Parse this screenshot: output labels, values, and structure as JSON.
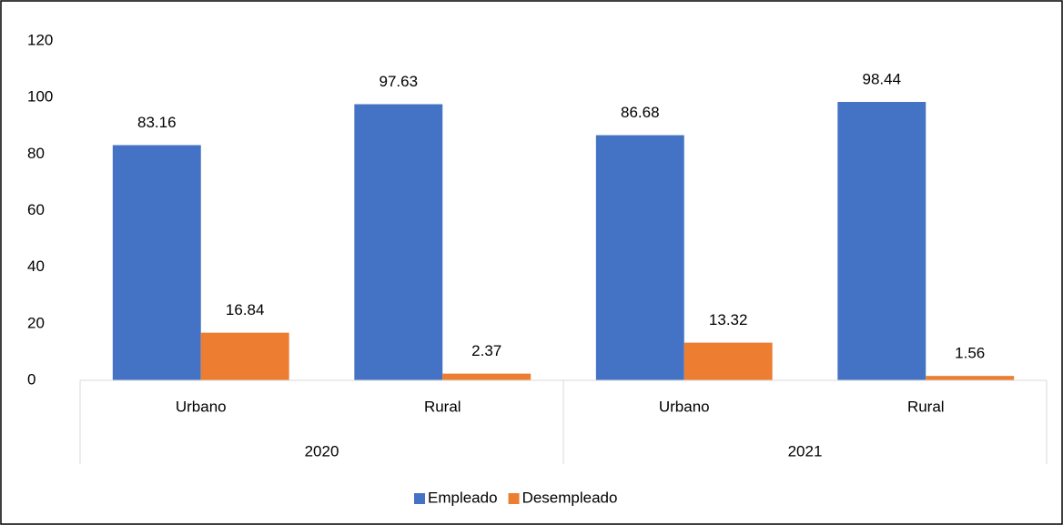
{
  "chart_data": {
    "type": "bar",
    "categories": [
      "Urbano",
      "Rural",
      "Urbano",
      "Rural"
    ],
    "groups": [
      "2020",
      "2021"
    ],
    "series": [
      {
        "name": "Empleado",
        "color": "#4472c4",
        "values": [
          83.16,
          97.63,
          86.68,
          98.44
        ]
      },
      {
        "name": "Desempleado",
        "color": "#ed7d31",
        "values": [
          16.84,
          2.37,
          13.32,
          1.56
        ]
      }
    ],
    "ylim": [
      0,
      120
    ],
    "yticks": [
      0,
      20,
      40,
      60,
      80,
      100,
      120
    ],
    "grid": false,
    "legend": "bottom"
  }
}
